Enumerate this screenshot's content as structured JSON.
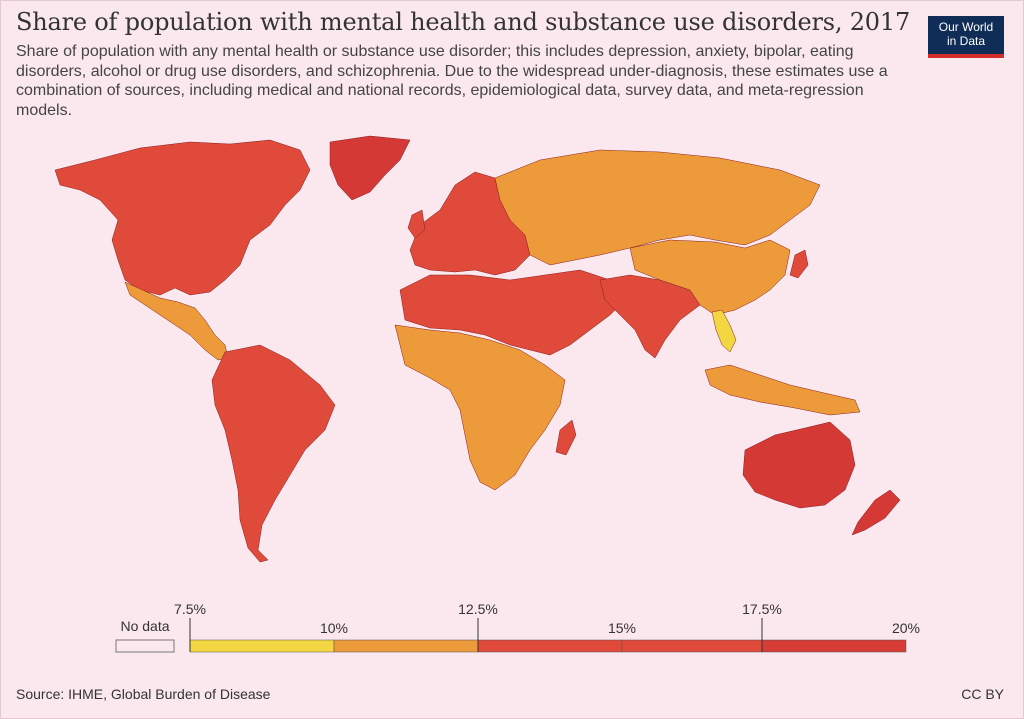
{
  "title": "Share of population with mental health and substance use disorders, 2017",
  "subtitle": "Share of population with any mental health or substance use disorder; this includes depression, anxiety, bipolar, eating disorders, alcohol or drug use disorders, and schizophrenia. Due to the widespread under-diagnosis, these estimates use a combination of sources, including medical and national records, epidemiological data, survey data, and meta-regression models.",
  "logo": {
    "line1": "Our World",
    "line2": "in Data"
  },
  "legend": {
    "no_data_label": "No data",
    "ticks_top": [
      "7.5%",
      "12.5%",
      "17.5%"
    ],
    "ticks_bottom": [
      "10%",
      "15%",
      "20%"
    ],
    "bins": [
      {
        "from": 7.5,
        "to": 10,
        "color": "#f3d742"
      },
      {
        "from": 10,
        "to": 12.5,
        "color": "#ec9a3a"
      },
      {
        "from": 12.5,
        "to": 15,
        "color": "#e04a3a"
      },
      {
        "from": 15,
        "to": 17.5,
        "color": "#e04a3a"
      },
      {
        "from": 17.5,
        "to": 20,
        "color": "#d73c35"
      }
    ]
  },
  "colors": {
    "bin_10_12_5": "#ec9a3a",
    "bin_12_5_15": "#e04a3a",
    "bin_17_5_20": "#d43935",
    "bin_7_5_10": "#f3d742",
    "no_data": "#ffffff",
    "border": "#8a1e1e"
  },
  "regions": [
    {
      "name": "North America",
      "class": "bin_12_5_15"
    },
    {
      "name": "Greenland",
      "class": "bin_17_5_20"
    },
    {
      "name": "Mexico & Central America",
      "class": "bin_10_12_5"
    },
    {
      "name": "South America",
      "class": "bin_12_5_15"
    },
    {
      "name": "Europe",
      "class": "bin_12_5_15"
    },
    {
      "name": "Russia & Central Asia",
      "class": "bin_10_12_5"
    },
    {
      "name": "Middle East & North Africa",
      "class": "bin_12_5_15"
    },
    {
      "name": "Sub-Saharan Africa",
      "class": "bin_10_12_5"
    },
    {
      "name": "South Asia",
      "class": "bin_12_5_15"
    },
    {
      "name": "East Asia",
      "class": "bin_10_12_5"
    },
    {
      "name": "Vietnam",
      "class": "bin_7_5_10"
    },
    {
      "name": "Australia & New Zealand",
      "class": "bin_17_5_20"
    }
  ],
  "source": "Source: IHME, Global Burden of Disease",
  "license": "CC BY"
}
